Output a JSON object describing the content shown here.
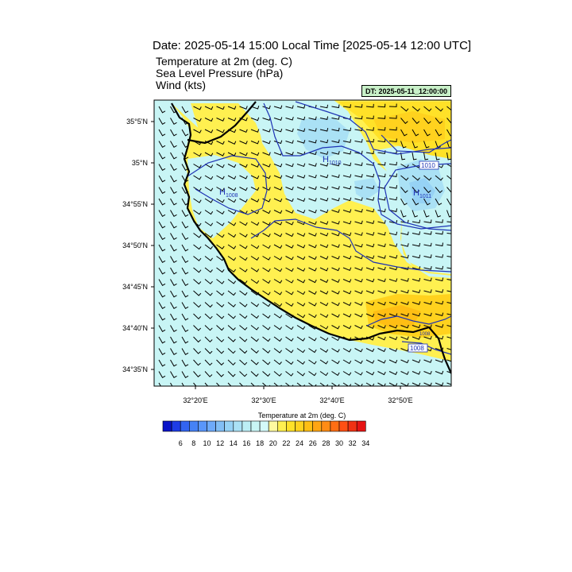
{
  "header": {
    "title": "Date: 2025-05-14  15:00 Local Time [2025-05-14  12:00 UTC]",
    "line1": "Temperature at 2m   (deg. C)",
    "line2": "Sea Level Pressure   (hPa)",
    "line3": "Wind   (kts)",
    "dt_label": "DT: 2025-05-11_12:00:00"
  },
  "axes": {
    "lat_labels": [
      "35°5'N",
      "35°N",
      "34°55'N",
      "34°50'N",
      "34°45'N",
      "34°40'N",
      "34°35'N"
    ],
    "lon_labels": [
      "32°20'E",
      "32°30'E",
      "32°40'E",
      "32°50'E"
    ]
  },
  "pressure_labels": {
    "h_left": "H",
    "h_left_val": "1008",
    "h_center": "H",
    "h_center_val": "1010",
    "h_right": "H",
    "h_right_val": "1011",
    "box_upper": "1010",
    "box_lower": "1008",
    "small_right": "1008"
  },
  "colorbar": {
    "title": "Temperature at 2m  (deg. C)",
    "labels": [
      "6",
      "8",
      "10",
      "12",
      "14",
      "16",
      "18",
      "20",
      "22",
      "24",
      "26",
      "28",
      "30",
      "32",
      "34"
    ],
    "colors": [
      "#0a14c8",
      "#1e3ce6",
      "#3264f0",
      "#4682f5",
      "#5a96fa",
      "#6eaafa",
      "#82bef5",
      "#96d2f5",
      "#aae1f5",
      "#bceef5",
      "#c8f5f5",
      "#d4fafa",
      "#fffaa0",
      "#fff050",
      "#ffe128",
      "#ffd21e",
      "#ffbe14",
      "#ffa514",
      "#ff8c14",
      "#ff6e14",
      "#ff5014",
      "#f03214",
      "#e61414"
    ]
  }
}
